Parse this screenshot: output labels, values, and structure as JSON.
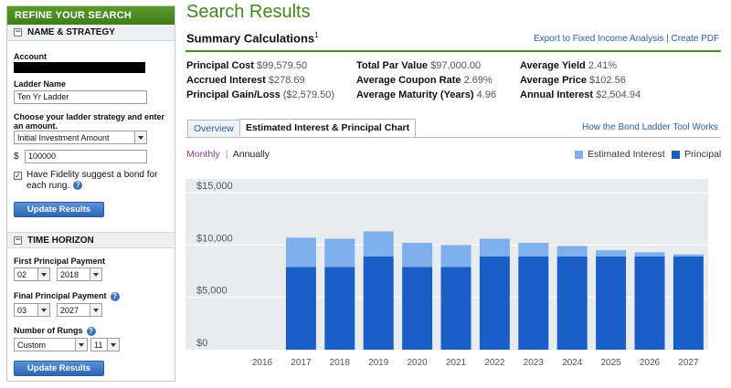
{
  "sidebar": {
    "title": "REFINE YOUR SEARCH",
    "name_strategy": {
      "toggle": "−",
      "heading": "NAME & STRATEGY",
      "account_label": "Account",
      "ladder_name_label": "Ladder Name",
      "ladder_name_value": "Ten Yr Ladder",
      "strategy_label": "Choose your ladder strategy and enter an amount.",
      "strategy_value": "Initial Investment Amount",
      "currency_symbol": "$",
      "amount_value": "100000",
      "suggest_checked": "✓",
      "suggest_label": "Have Fidelity suggest a bond for each rung.",
      "update_label": "Update Results"
    },
    "time_horizon": {
      "toggle": "−",
      "heading": "TIME HORIZON",
      "first_label": "First Principal Payment",
      "first_month": "02",
      "first_year": "2018",
      "final_label": "Final Principal Payment",
      "final_month": "03",
      "final_year": "2027",
      "rungs_label": "Number of Rungs",
      "rungs_mode": "Custom",
      "rungs_count": "11",
      "update_label": "Update Results"
    },
    "help_glyph": "?"
  },
  "main": {
    "title": "Search Results",
    "summary_title": "Summary Calculations",
    "summary_sup": "1",
    "export_label": "Export to Fixed Income Analysis",
    "separator": "|",
    "create_pdf_label": "Create PDF",
    "stats": {
      "principal_cost": {
        "label": "Principal Cost",
        "value": "$99,579.50"
      },
      "accrued_interest": {
        "label": "Accrued Interest",
        "value": "$278.69"
      },
      "principal_gain_loss": {
        "label": "Principal Gain/Loss",
        "value": "($2,579.50)"
      },
      "total_par_value": {
        "label": "Total Par Value",
        "value": "$97,000.00"
      },
      "average_coupon_rate": {
        "label": "Average Coupon Rate",
        "value": "2.69%"
      },
      "average_maturity": {
        "label": "Average Maturity (Years)",
        "value": "4.96"
      },
      "average_yield": {
        "label": "Average Yield",
        "value": "2.41%"
      },
      "average_price": {
        "label": "Average Price",
        "value": "$102.56"
      },
      "annual_interest": {
        "label": "Annual Interest",
        "value": "$2,504.94"
      }
    },
    "tabs": [
      {
        "label": "Overview",
        "active": false
      },
      {
        "label": "Estimated Interest & Principal Chart",
        "active": true
      }
    ],
    "how_link": "How the Bond Ladder Tool Works",
    "view_toggle": {
      "monthly": "Monthly",
      "separator": "|",
      "annually": "Annually"
    }
  },
  "colors": {
    "brand_green": "#3f8a1a",
    "link_blue": "#2a5db0",
    "interest": "#7fb0ee",
    "principal": "#1a5fc8"
  },
  "chart_data": {
    "type": "bar",
    "stacked": true,
    "categories": [
      "2016",
      "2017",
      "2018",
      "2019",
      "2020",
      "2021",
      "2022",
      "2023",
      "2024",
      "2025",
      "2026",
      "2027"
    ],
    "series": [
      {
        "name": "Principal",
        "values": [
          0,
          7900,
          7900,
          8900,
          7900,
          7900,
          8900,
          8900,
          8900,
          8900,
          8900,
          8900
        ]
      },
      {
        "name": "Estimated Interest",
        "values": [
          0,
          2800,
          2700,
          2400,
          2300,
          2100,
          1700,
          1300,
          1000,
          600,
          400,
          200
        ]
      }
    ],
    "y_ticks": [
      "$0",
      "$5,000",
      "$10,000",
      "$15,000"
    ],
    "ylim": [
      0,
      15000
    ],
    "grid": "horizontal",
    "legend": "top-right"
  }
}
